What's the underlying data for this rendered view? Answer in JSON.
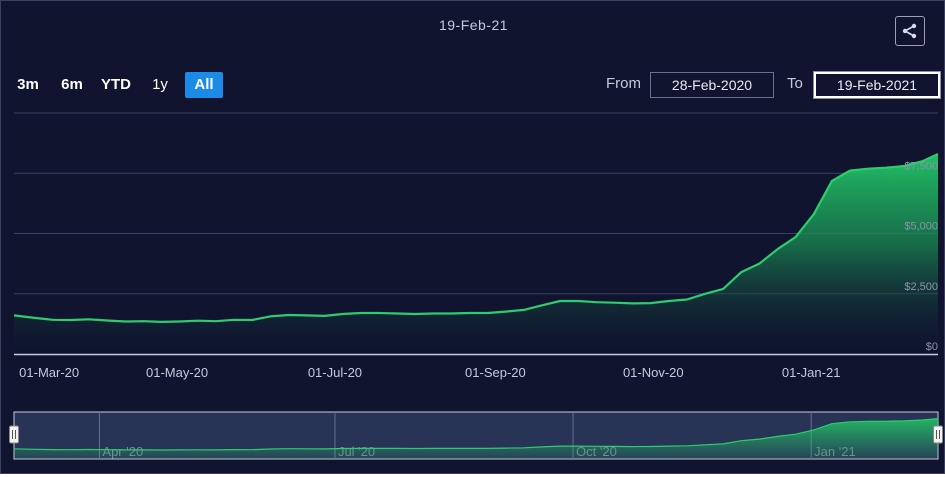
{
  "header": {
    "title": "19-Feb-21"
  },
  "range_selector": {
    "buttons": [
      {
        "label": "3m",
        "active": false
      },
      {
        "label": "6m",
        "active": false
      },
      {
        "label": "YTD",
        "active": false
      },
      {
        "label": "1y",
        "active": false
      },
      {
        "label": "All",
        "active": true
      }
    ],
    "from_label": "From",
    "from_value": "28-Feb-2020",
    "to_label": "To",
    "to_value": "19-Feb-2021"
  },
  "share_icon": "share-icon",
  "colors": {
    "background": "#10142f",
    "line": "#2ecc6d",
    "area_top": "#22c065",
    "grid": "#3a4062",
    "accent": "#1b8be6",
    "navigator_bg": "#283456"
  },
  "chart_data": {
    "type": "area",
    "x_axis": {
      "type": "date",
      "tick_labels": [
        "01-Mar-20",
        "01-May-20",
        "01-Jul-20",
        "01-Sep-20",
        "01-Nov-20",
        "01-Jan-21"
      ]
    },
    "y_axis": {
      "tick_labels": [
        "$0",
        "$2,500",
        "$5,000",
        "$7,500"
      ],
      "range": [
        0,
        10000
      ],
      "grid": true,
      "label_side": "right"
    },
    "series": [
      {
        "x": [
          "2020-02-28",
          "2020-03-07",
          "2020-03-14",
          "2020-03-21",
          "2020-03-28",
          "2020-04-04",
          "2020-04-11",
          "2020-04-18",
          "2020-04-25",
          "2020-05-02",
          "2020-05-09",
          "2020-05-16",
          "2020-05-23",
          "2020-05-30",
          "2020-06-06",
          "2020-06-13",
          "2020-06-20",
          "2020-06-27",
          "2020-07-04",
          "2020-07-11",
          "2020-07-18",
          "2020-07-25",
          "2020-08-01",
          "2020-08-08",
          "2020-08-15",
          "2020-08-22",
          "2020-08-29",
          "2020-09-05",
          "2020-09-12",
          "2020-09-19",
          "2020-09-26",
          "2020-10-03",
          "2020-10-10",
          "2020-10-17",
          "2020-10-24",
          "2020-10-31",
          "2020-11-07",
          "2020-11-14",
          "2020-11-21",
          "2020-11-28",
          "2020-12-05",
          "2020-12-12",
          "2020-12-19",
          "2020-12-26",
          "2021-01-02",
          "2021-01-09",
          "2021-01-16",
          "2021-01-23",
          "2021-01-30",
          "2021-02-06",
          "2021-02-13",
          "2021-02-19"
        ],
        "y": [
          1600,
          1500,
          1420,
          1410,
          1440,
          1390,
          1350,
          1360,
          1330,
          1350,
          1380,
          1360,
          1420,
          1410,
          1560,
          1620,
          1600,
          1580,
          1660,
          1700,
          1700,
          1680,
          1660,
          1680,
          1680,
          1700,
          1700,
          1760,
          1830,
          2020,
          2200,
          2200,
          2150,
          2130,
          2100,
          2110,
          2200,
          2260,
          2500,
          2700,
          3400,
          3750,
          4350,
          4850,
          5800,
          7180,
          7610,
          7690,
          7730,
          7800,
          8000,
          8300
        ]
      }
    ]
  },
  "navigator": {
    "labels": [
      "Apr '20",
      "Jul '20",
      "Oct '20",
      "Jan '21"
    ]
  }
}
